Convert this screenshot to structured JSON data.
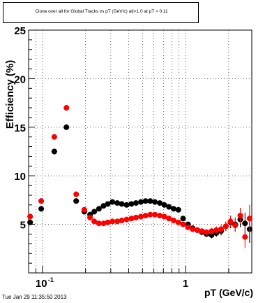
{
  "chart_data": {
    "type": "scatter",
    "title": "Clone over all for Global Tracks vs pT (GeV/c) at|<1.0 at pT > 0.11",
    "xlabel": "pT (GeV/c)",
    "ylabel": "Efficiency (%)",
    "xscale": "log",
    "xlim": [
      0.08,
      2.9
    ],
    "ylim": [
      0,
      25
    ],
    "grid": true,
    "ytick_labels": [
      "5",
      "10",
      "15",
      "20",
      "25"
    ],
    "xtick_labels": [
      "10",
      "-1",
      "1"
    ],
    "series": [
      {
        "color": "#000000",
        "x": [
          0.082,
          0.098,
          0.121,
          0.147,
          0.172,
          0.196,
          0.215,
          0.23,
          0.248,
          0.267,
          0.286,
          0.308,
          0.333,
          0.358,
          0.387,
          0.418,
          0.45,
          0.487,
          0.525,
          0.566,
          0.61,
          0.66,
          0.71,
          0.765,
          0.825,
          0.89,
          0.96,
          1.04,
          1.12,
          1.21,
          1.3,
          1.4,
          1.52,
          1.64,
          1.77,
          1.91,
          2.06,
          2.22,
          2.41,
          2.6,
          2.8
        ],
        "y": [
          5.2,
          6.6,
          12.5,
          15.0,
          7.4,
          6.3,
          6.0,
          6.3,
          6.6,
          6.9,
          7.1,
          7.3,
          7.2,
          7.1,
          7.0,
          7.1,
          7.2,
          7.3,
          7.4,
          7.4,
          7.3,
          7.2,
          7.0,
          6.8,
          6.6,
          6.5,
          5.6,
          5.0,
          4.6,
          4.4,
          4.2,
          4.0,
          3.9,
          4.1,
          4.3,
          4.8,
          5.2,
          5.0,
          5.5,
          5.1,
          4.5
        ],
        "yerr": [
          0.3,
          0.3,
          0.3,
          0.3,
          0.2,
          0.15,
          0.1,
          0.1,
          0.1,
          0.1,
          0.1,
          0.1,
          0.1,
          0.1,
          0.1,
          0.1,
          0.1,
          0.1,
          0.1,
          0.1,
          0.1,
          0.1,
          0.1,
          0.15,
          0.15,
          0.2,
          0.2,
          0.2,
          0.25,
          0.25,
          0.3,
          0.3,
          0.35,
          0.4,
          0.45,
          0.5,
          0.6,
          0.7,
          0.8,
          1.1,
          1.4
        ]
      },
      {
        "color": "#ff0000",
        "x": [
          0.082,
          0.098,
          0.121,
          0.147,
          0.172,
          0.196,
          0.215,
          0.23,
          0.248,
          0.267,
          0.286,
          0.308,
          0.333,
          0.358,
          0.387,
          0.418,
          0.45,
          0.487,
          0.525,
          0.566,
          0.61,
          0.66,
          0.71,
          0.765,
          0.825,
          0.89,
          0.96,
          1.04,
          1.12,
          1.21,
          1.3,
          1.4,
          1.52,
          1.64,
          1.77,
          1.91,
          2.06,
          2.22,
          2.41,
          2.6,
          2.8
        ],
        "y": [
          5.8,
          7.4,
          14.0,
          17.0,
          8.1,
          6.5,
          5.7,
          5.3,
          5.1,
          5.1,
          5.2,
          5.3,
          5.3,
          5.4,
          5.5,
          5.6,
          5.7,
          5.8,
          5.9,
          6.0,
          6.0,
          5.9,
          5.8,
          5.6,
          5.4,
          5.2,
          5.0,
          4.7,
          4.5,
          4.4,
          4.3,
          4.2,
          4.3,
          4.4,
          4.5,
          4.8,
          5.3,
          4.9,
          5.9,
          3.7,
          5.6
        ],
        "yerr": [
          0.3,
          0.3,
          0.3,
          0.3,
          0.2,
          0.15,
          0.1,
          0.1,
          0.1,
          0.1,
          0.1,
          0.1,
          0.1,
          0.1,
          0.1,
          0.1,
          0.1,
          0.1,
          0.1,
          0.1,
          0.1,
          0.1,
          0.1,
          0.15,
          0.15,
          0.2,
          0.2,
          0.2,
          0.25,
          0.25,
          0.3,
          0.3,
          0.35,
          0.4,
          0.45,
          0.5,
          0.6,
          0.7,
          0.8,
          1.1,
          1.4
        ]
      }
    ]
  },
  "timestamp": "Tue Jan 29 11:35:50 2013"
}
